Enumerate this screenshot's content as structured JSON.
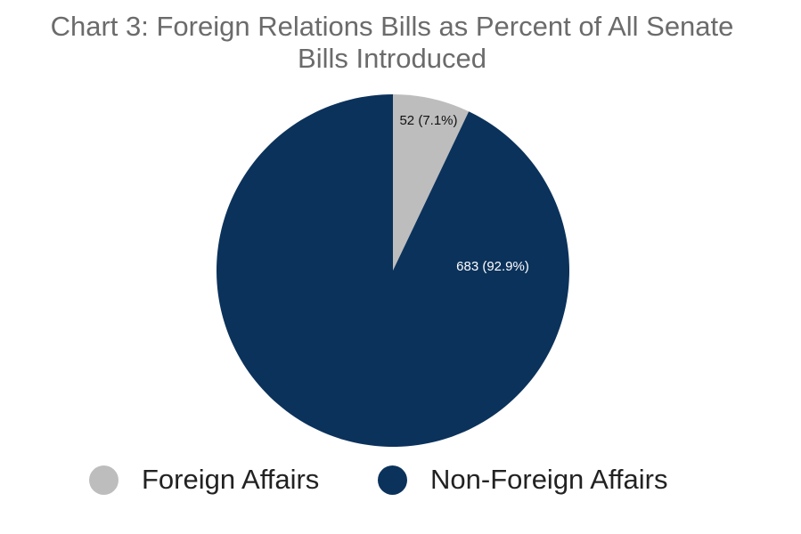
{
  "chart_data": {
    "type": "pie",
    "title_lines": [
      "Chart 3: Foreign Relations Bills as Percent of All Senate",
      "Bills Introduced"
    ],
    "slices": [
      {
        "name": "Foreign Affairs",
        "value": 52,
        "percent": 7.1,
        "label": "52 (7.1%)",
        "color": "#bdbdbd",
        "label_color": "#111111"
      },
      {
        "name": "Non-Foreign Affairs",
        "value": 683,
        "percent": 92.9,
        "label": "683 (92.9%)",
        "color": "#0b325b",
        "label_color": "#ffffff"
      }
    ],
    "legend_position": "bottom"
  }
}
